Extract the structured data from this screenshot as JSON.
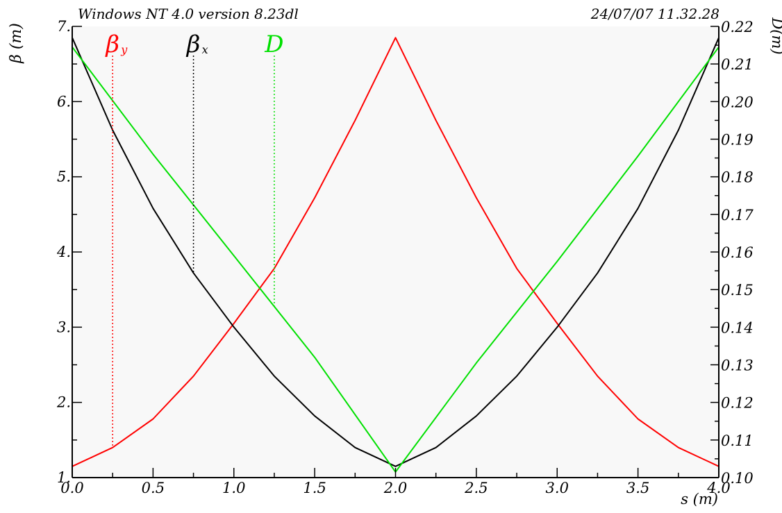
{
  "header": {
    "left": "Windows NT 4.0 version 8.23dl",
    "right": "24/07/07  11.32.28"
  },
  "chart_data": {
    "type": "line",
    "xlabel": "s (m)",
    "ylabel_left": "β (m)",
    "ylabel_right": "D(m)",
    "xlim": [
      0.0,
      4.0
    ],
    "ylim_left": [
      1.0,
      7.0
    ],
    "ylim_right": [
      0.1,
      0.22
    ],
    "x_ticks": [
      "0.0",
      "0.5",
      "1.0",
      "1.5",
      "2.0",
      "2.5",
      "3.0",
      "3.5",
      "4.0"
    ],
    "y_left_ticks": [
      "1.",
      "2.",
      "3.",
      "4.",
      "5.",
      "6.",
      "7."
    ],
    "y_right_ticks": [
      "0.10",
      "0.11",
      "0.12",
      "0.13",
      "0.14",
      "0.15",
      "0.16",
      "0.17",
      "0.18",
      "0.19",
      "0.20",
      "0.21",
      "0.22"
    ],
    "grid": false,
    "legend_placement": "top-left",
    "series": [
      {
        "name": "β",
        "subscript": "y",
        "axis": "left",
        "color": "#ff0000",
        "marker_x": 0.25,
        "x": [
          0.0,
          0.25,
          0.5,
          0.75,
          1.0,
          1.25,
          1.5,
          1.75,
          2.0,
          2.25,
          2.5,
          2.75,
          3.0,
          3.25,
          3.5,
          3.75,
          4.0
        ],
        "y": [
          1.15,
          1.4,
          1.78,
          2.35,
          3.05,
          3.78,
          4.72,
          5.75,
          6.85,
          5.75,
          4.72,
          3.78,
          3.05,
          2.35,
          1.78,
          1.4,
          1.15
        ]
      },
      {
        "name": "β",
        "subscript": "x",
        "axis": "left",
        "color": "#000000",
        "marker_x": 0.75,
        "x": [
          0.0,
          0.25,
          0.5,
          0.75,
          1.0,
          1.25,
          1.5,
          1.75,
          2.0,
          2.25,
          2.5,
          2.75,
          3.0,
          3.25,
          3.5,
          3.75,
          4.0
        ],
        "y": [
          6.85,
          5.62,
          4.58,
          3.72,
          3.0,
          2.35,
          1.82,
          1.4,
          1.15,
          1.4,
          1.82,
          2.35,
          3.0,
          3.72,
          4.58,
          5.62,
          6.85
        ]
      },
      {
        "name": "D",
        "subscript": "",
        "axis": "right",
        "color": "#00e000",
        "marker_x": 1.25,
        "x": [
          0.0,
          0.5,
          1.0,
          1.5,
          2.0,
          2.5,
          3.0,
          3.5,
          4.0
        ],
        "y": [
          0.2145,
          0.186,
          0.159,
          0.132,
          0.1015,
          0.1305,
          0.1575,
          0.1855,
          0.2145
        ]
      }
    ]
  }
}
